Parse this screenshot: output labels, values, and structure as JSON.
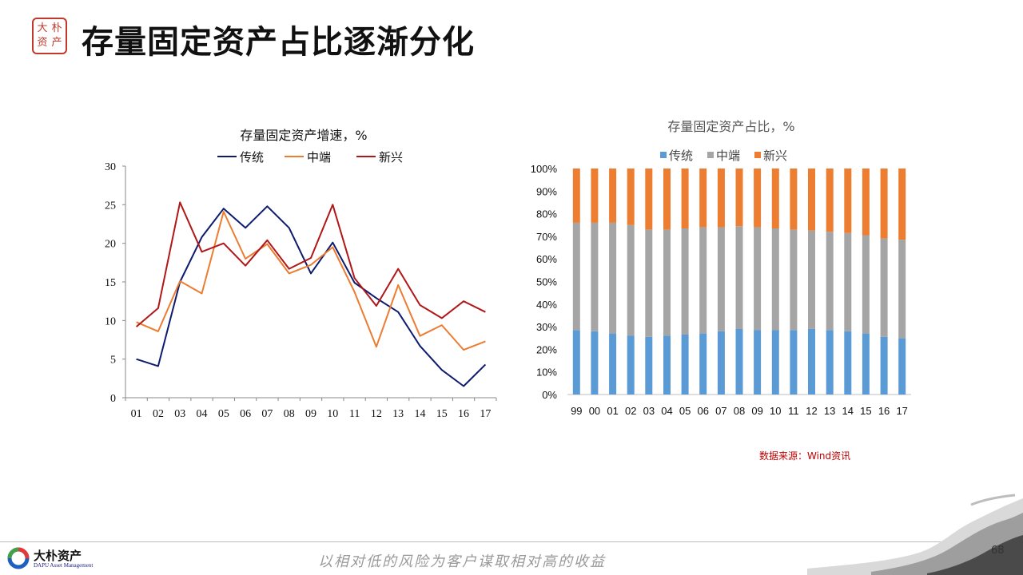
{
  "header": {
    "logo_glyphs": [
      "大",
      "朴",
      "资",
      "产"
    ],
    "title": "存量固定资产占比逐渐分化"
  },
  "chart_data": [
    {
      "type": "line",
      "title": "存量固定资产增速，%",
      "x": [
        "01",
        "02",
        "03",
        "04",
        "05",
        "06",
        "07",
        "08",
        "09",
        "10",
        "11",
        "12",
        "13",
        "14",
        "15",
        "16",
        "17"
      ],
      "ylim": [
        0,
        30
      ],
      "yticks": [
        0,
        5,
        10,
        15,
        20,
        25,
        30
      ],
      "grid": false,
      "legend": "top-center",
      "series": [
        {
          "name": "传统",
          "color": "#0d1b6e",
          "values": [
            5.0,
            4.1,
            15.0,
            20.8,
            24.5,
            22.0,
            24.8,
            22.0,
            16.1,
            20.1,
            14.9,
            12.9,
            11.1,
            6.7,
            3.6,
            1.5,
            4.3
          ]
        },
        {
          "name": "中端",
          "color": "#ec7c30",
          "values": [
            9.8,
            8.6,
            15.1,
            13.5,
            24.1,
            18.0,
            19.9,
            16.1,
            17.2,
            19.5,
            13.7,
            6.6,
            14.6,
            8.0,
            9.4,
            6.2,
            7.3
          ]
        },
        {
          "name": "新兴",
          "color": "#b01717",
          "values": [
            9.2,
            11.6,
            25.3,
            18.9,
            20.0,
            17.1,
            20.4,
            16.7,
            18.1,
            25.0,
            15.5,
            11.9,
            16.7,
            12.0,
            10.3,
            12.5,
            11.1
          ]
        }
      ]
    },
    {
      "type": "bar",
      "stacked": true,
      "title": "存量固定资产占比，%",
      "categories": [
        "99",
        "00",
        "01",
        "02",
        "03",
        "04",
        "05",
        "06",
        "07",
        "08",
        "09",
        "10",
        "11",
        "12",
        "13",
        "14",
        "15",
        "16",
        "17"
      ],
      "ylim": [
        0,
        100
      ],
      "yticks": [
        "0%",
        "10%",
        "20%",
        "30%",
        "40%",
        "50%",
        "60%",
        "70%",
        "80%",
        "90%",
        "100%"
      ],
      "grid": false,
      "legend": "top-center",
      "series": [
        {
          "name": "传统",
          "color": "#5b9bd5",
          "values": [
            28.5,
            28,
            27,
            26,
            25.5,
            26,
            26.5,
            27,
            28,
            29,
            28.5,
            28.5,
            28.5,
            29,
            28.5,
            28,
            27,
            25.5,
            25
          ]
        },
        {
          "name": "中端",
          "color": "#a5a5a5",
          "values": [
            47.5,
            48,
            49,
            49,
            47.5,
            47,
            47,
            47,
            46,
            45.5,
            45.5,
            45,
            44.5,
            43.5,
            43.5,
            43.5,
            43.5,
            43.5,
            43.5
          ]
        },
        {
          "name": "新兴",
          "color": "#ed7d31",
          "values": [
            24,
            24,
            24,
            25,
            27,
            27,
            26.5,
            26,
            26,
            25.5,
            26,
            26.5,
            27,
            27.5,
            28,
            28.5,
            29.5,
            31,
            31.5
          ]
        }
      ]
    }
  ],
  "source_note": "数据来源：Wind资讯",
  "footer": {
    "company": "大朴资产",
    "company_en": "DAPU Asset Management",
    "slogan": "以相对低的风险为客户谋取相对高的收益",
    "page_number": "68"
  }
}
